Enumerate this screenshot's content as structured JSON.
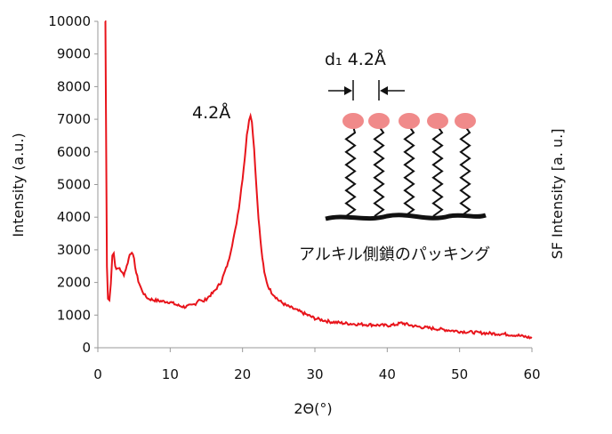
{
  "chart_data": {
    "type": "line",
    "xlabel": "2Θ(°)",
    "ylabel": "Intensity (a.u.)",
    "y2label": "SF Intensity [a. u.]",
    "xlim": [
      0,
      60
    ],
    "ylim": [
      0,
      10000
    ],
    "xticks": [
      0,
      10,
      20,
      30,
      40,
      50,
      60
    ],
    "yticks": [
      0,
      1000,
      2000,
      3000,
      4000,
      5000,
      6000,
      7000,
      8000,
      9000,
      10000
    ],
    "grid": false,
    "series": [
      {
        "color": "#e8141b",
        "x": [
          1.0,
          1.05,
          1.15,
          1.25,
          1.4,
          1.6,
          1.8,
          2.0,
          2.2,
          2.4,
          2.7,
          3.0,
          3.3,
          3.6,
          4.0,
          4.4,
          4.7,
          5.0,
          5.3,
          5.6,
          6.0,
          6.5,
          7.0,
          8.0,
          9.0,
          10.0,
          11.0,
          12.0,
          13.0,
          13.5,
          14.0,
          14.5,
          15.0,
          16.0,
          17.0,
          18.0,
          19.0,
          19.5,
          20.0,
          20.3,
          20.6,
          20.9,
          21.1,
          21.3,
          21.6,
          21.9,
          22.2,
          22.6,
          23.0,
          23.5,
          24.0,
          25.0,
          26.0,
          27.0,
          28.0,
          29.0,
          30.0,
          32.0,
          34.0,
          36.0,
          38.0,
          40.0,
          41.0,
          42.0,
          43.0,
          44.0,
          46.0,
          48.0,
          50.0,
          52.0,
          54.0,
          56.0,
          58.0,
          60.0
        ],
        "y": [
          10000,
          10000,
          6000,
          2500,
          1500,
          1450,
          2000,
          2850,
          2900,
          2500,
          2400,
          2450,
          2300,
          2250,
          2500,
          2850,
          2950,
          2700,
          2300,
          2050,
          1800,
          1600,
          1500,
          1450,
          1420,
          1400,
          1300,
          1250,
          1300,
          1350,
          1500,
          1400,
          1500,
          1700,
          2000,
          2600,
          3600,
          4300,
          5200,
          5800,
          6500,
          7000,
          7150,
          6900,
          6100,
          5000,
          4000,
          3000,
          2300,
          1900,
          1700,
          1450,
          1300,
          1200,
          1100,
          1000,
          900,
          800,
          750,
          720,
          700,
          680,
          700,
          760,
          700,
          650,
          600,
          550,
          500,
          470,
          440,
          420,
          380,
          300
        ]
      }
    ],
    "annotations": [
      {
        "text": "4.2Å",
        "x": 19.6,
        "y": 7250
      },
      {
        "text": "d₁ 4.2Å"
      },
      {
        "text": "アルキル側鎖のパッキング"
      }
    ]
  }
}
